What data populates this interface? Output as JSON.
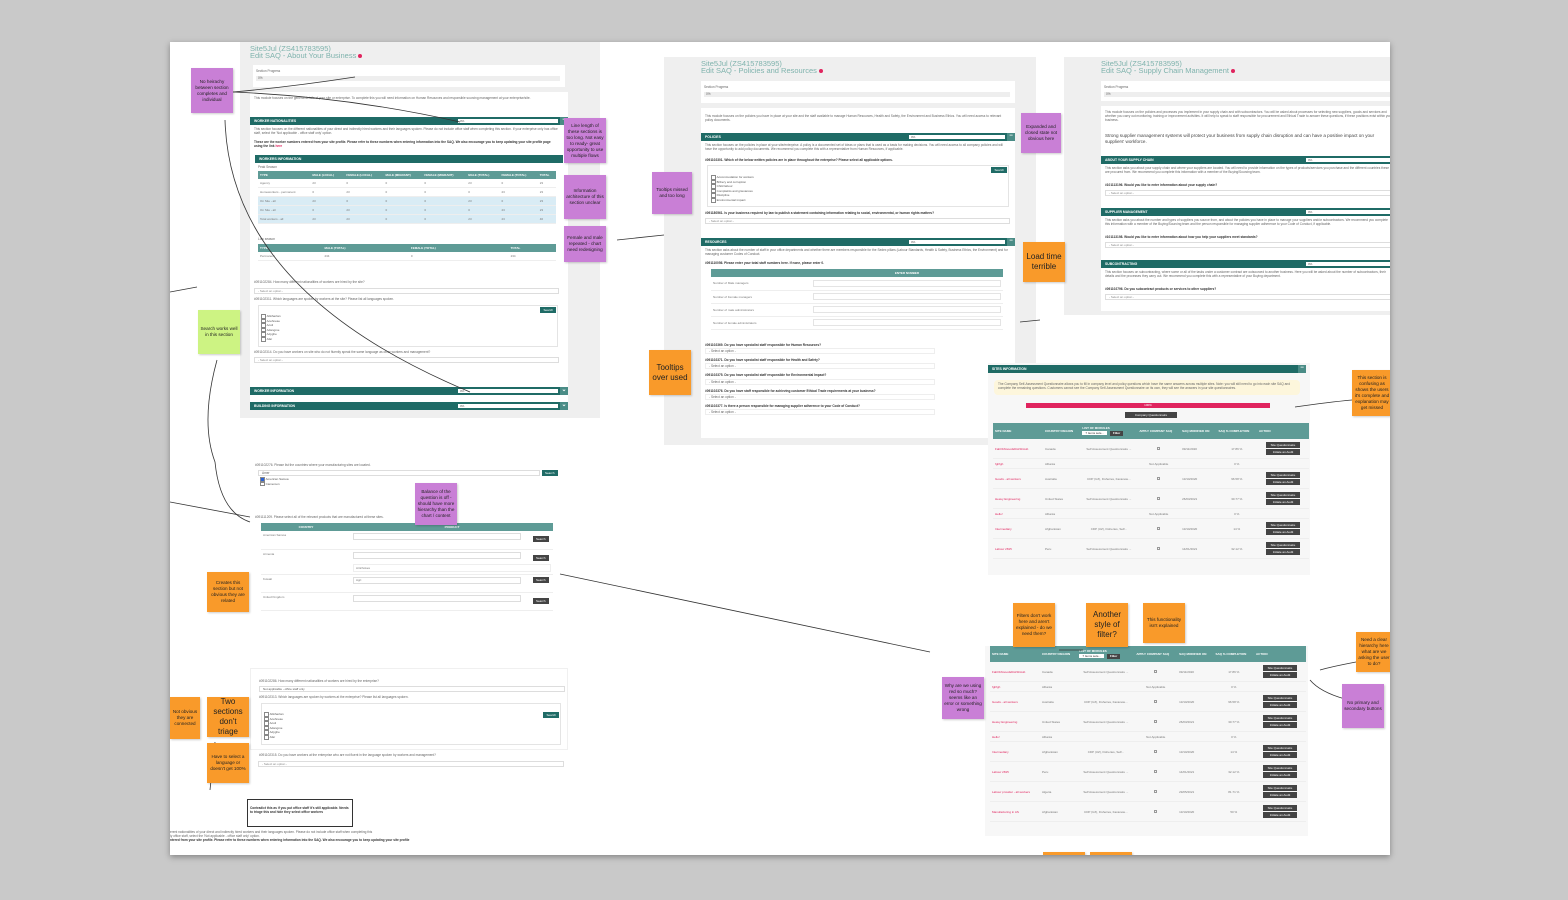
{
  "colors": {
    "teal": "#1f6b66",
    "teal_light": "#5e9b96",
    "red": "#e0245e",
    "sticky_purple": "#c97fd6",
    "sticky_orange": "#f99a2a",
    "sticky_green": "#cdf383"
  },
  "about": {
    "site": "Site5Jul (ZS415783595)",
    "title": "Edit SAQ - About Your Business",
    "progress_label": "Section Progress",
    "progress_value": "0%",
    "intro": "This module focuses on the general details of your site or enterprise. To complete this you will need information on Human Resources and responsible sourcing management at your enterprise/site.",
    "sections": [
      {
        "label": "WORKER NATIONALITIES",
        "pct": "0%"
      },
      {
        "label": "WORKER INFORMATION",
        "pct": "0%"
      },
      {
        "label": "BUILDING INFORMATION",
        "pct": "0%"
      }
    ],
    "nat_text": "This section focuses on the different nationalities of your direct and indirectly hired workers and their languages spoken. Please do not include office staff when completing this section. If your enterprise only has office staff, select the 'Not applicable - office staff only' option.",
    "nat_text2": "These are the worker numbers entered from your site profile. Please refer to these numbers when entering information into the SAQ. We also encourage you to keep updating your site profile page using the link",
    "link": "here",
    "workers_header": "WORKERS INFORMATION",
    "peak_label": "Peak Season",
    "peak_cols": [
      "TYPE",
      "MALE (LOCAL)",
      "FEMALE (LOCAL)",
      "MALE (MIGRANT)",
      "FEMALE (MIGRANT)",
      "MALE (TOTAL)",
      "FEMALE (TOTAL)",
      "TOTAL"
    ],
    "peak_rows": [
      [
        "Agency",
        "23",
        "0",
        "0",
        "0",
        "23",
        "0",
        "23"
      ],
      [
        "Homeworkers - permanent",
        "0",
        "23",
        "0",
        "0",
        "0",
        "23",
        "23"
      ],
      [
        "On Site - all",
        "23",
        "0",
        "0",
        "0",
        "23",
        "0",
        "23"
      ],
      [
        "On Site - all",
        "0",
        "23",
        "0",
        "0",
        "0",
        "23",
        "23"
      ],
      [
        "Total workers - all",
        "23",
        "23",
        "0",
        "0",
        "23",
        "23",
        "46"
      ]
    ],
    "low_label": "Low season",
    "low_cols": [
      "TYPE",
      "MALE (TOTAL)",
      "FEMALE (TOTAL)",
      "TOTAL"
    ],
    "low_rows": [
      [
        "Permanent",
        "234",
        "0",
        "234"
      ]
    ],
    "q1": "#091102284. How many different nationalities of workers are hired by the site?",
    "q2": "#091102311. Which languages are spoken by workers at the site? Please list all languages spoken.",
    "q3": "#091102314. Do you have workers on site who do not fluently speak the same language as other workers and management?",
    "select_placeholder": "- Select an option -",
    "search_label": "Search",
    "languages": [
      "Abkhazian",
      "Acehnese",
      "Acoli",
      "Adangme",
      "Adyghe",
      "Afar"
    ]
  },
  "policies": {
    "site": "Site5Jul (ZS415783595)",
    "title": "Edit SAQ - Policies and Resources",
    "progress_label": "Section Progress",
    "progress_value": "0%",
    "intro": "This module focuses on the policies you have in place at your site and the staff available to manage Human Resources, Health and Safety, the Environment and Business Ethics. You will need access to relevant policy documents.",
    "sections": [
      {
        "label": "POLICIES",
        "pct": "0%"
      },
      {
        "label": "RESOURCES",
        "pct": "0%"
      }
    ],
    "pol_text": "This section focuses on the policies in place at your site/enterprise. A policy is a documented set of ideas or plans that is used as a basis for making decisions. You will need access to all company policies and will have the opportunity to add policy documents. We recommend you complete this with a representative from Human Resources, if applicable.",
    "q_pol": "#091102301. Which of the below written policies are in place throughout the enterprise? Please select all applicable options.",
    "policy_options": [
      "Accommodation for workers",
      "Bribery and corruption",
      "Child labour",
      "Complaints and grievances",
      "Discipline",
      "Environmental impact"
    ],
    "q_law": "#091180561. Is your business required by law to publish a statement containing information relating to social, environmental, or human rights matters?",
    "res_text": "This section asks about the number of staff in your office departments and whether there are members responsible for the Sedex pillars (Labour Standards, Health & Safety, Business Ethics, the Environment) and for managing customer Codes of Conduct.",
    "q_staff": "#091110056. Please enter your total staff numbers here. If none, please enter 0.",
    "enter_number": "ENTER NUMBER",
    "staff_rows": [
      "Number of Male managers",
      "Number of Female managers",
      "Number of male administrators",
      "Number of female administrators"
    ],
    "questions": [
      "#091102369. Do you have specialist staff responsible for Human Resources?",
      "#091102371. Do you have specialist staff responsible for Health and Safety?",
      "#091102375. Do you have specialist staff responsible for Environmental Impact?",
      "#091102376. Do you have staff responsible for achieving customer Ethical Trade requirements at your business?",
      "#091102377. Is there a person responsible for managing supplier adherence to your Code of Conduct?"
    ],
    "select_placeholder": "- Select an option -",
    "search_label": "Search"
  },
  "supply": {
    "site": "Site5Jul (ZS415783595)",
    "title": "Edit SAQ - Supply Chain Management",
    "progress_label": "Section Progress",
    "progress_value": "0%",
    "intro": "This module focuses on the policies and processes you implement in your supply chain and with subcontractors. You will be asked about processes for selecting new suppliers, goods and services and whether you carry out monitoring, training or improvement activities. It will help to speak to staff responsible for procurement and Ethical Trade to answer these questions, if these positions exist within your business.",
    "intro2": "Strong supplier management systems will protect your business from supply chain disruption and can have a positive impact on your suppliers' workforce.",
    "sections": [
      {
        "label": "ABOUT YOUR SUPPLY CHAIN",
        "pct": "0%",
        "text": "This section asks you about your supply chain and where your suppliers are located. You will need to provide information on the types of products/services you purchase and the different countries these are procured from. We recommend you complete this information with a member of the Buying/Sourcing team.",
        "q": "#101113196. Would you like to enter information about your supply chain?"
      },
      {
        "label": "SUPPLIER MANAGEMENT",
        "pct": "0%",
        "text": "This section asks you about the number and types of suppliers you source from, and about the policies you have in place to manage your suppliers and/or subcontractors. We recommend you complete this information with a member of the Buying/Sourcing team and the person responsible for managing supplier adherence to your Code of Conduct, if applicable.",
        "q": "#101113198. Would you like to enter information about how you help your suppliers meet standards?"
      },
      {
        "label": "SUBCONTRACTING",
        "pct": "0%",
        "text": "This section focuses on subcontracting, where some or all of the tasks under a customer contract are outsourced to another business. Here you will be asked about the number of subcontractors, their details and the processes they carry out. We recommend you complete this with a representative of your Buying department.",
        "q": "#091102796. Do you subcontract products or services to other suppliers?"
      }
    ],
    "select_placeholder": "- Select an option -"
  },
  "sites": {
    "header": "SITES INFORMATION",
    "notice": "The Company Self-Assessment Questionnaire allows you to fill in company level and policy questions which have the same answers across multiple sites. Note: you will still need to go into each site SAQ and complete the remaining questions. Customers cannot see the Company Self-Assessment Questionnaire on its own, they will see the answers in your site questionnaires.",
    "progress_value": "100%",
    "company_button": "Company Questionnaire",
    "columns": [
      "SITE NAME",
      "COUNTRY/ REGION",
      "LIST OF MODULES",
      "APPLY COMPANY SAQ",
      "SAQ MODIFIED ON",
      "SAQ % COMPLETION",
      "ACTION"
    ],
    "filter_value": "7 items sele...",
    "filter_button": "Filter",
    "action_primary": "Site Questionnaire",
    "action_secondary": "Initiate an Audit",
    "rows": [
      {
        "name": "FabOfAGoodsDistShAub",
        "country": "Canada",
        "modules": "Self Assessment Questionnaire ...",
        "apply": "checkbox",
        "modified": "09/11/2020",
        "completion": "17.86 %",
        "actions": true
      },
      {
        "name": "fghfgh",
        "country": "Albania",
        "modules": "",
        "apply": "Not Applicable",
        "modified": "",
        "completion": "0 %",
        "actions": false
      },
      {
        "name": "Goods - all workers",
        "country": "Australia",
        "modules": "CDP (UZ), Fisheries, Facanete...",
        "apply": "checkbox",
        "modified": "13/10/2020",
        "completion": "96.58 %",
        "actions": true
      },
      {
        "name": "Heavy Engineering",
        "country": "United States",
        "modules": "Self Assessment Questionnaire ...",
        "apply": "checkbox",
        "modified": "26/03/2021",
        "completion": "30.77 %",
        "actions": true
      },
      {
        "name": "Hello!",
        "country": "Albania",
        "modules": "",
        "apply": "Not Applicable",
        "modified": "",
        "completion": "0 %",
        "actions": false
      },
      {
        "name": "Intermediary",
        "country": "Afghanistan",
        "modules": "CDP (UZ), Fisheries, Self...",
        "apply": "checkbox",
        "modified": "13/10/2020",
        "completion": "14 %",
        "actions": true
      },
      {
        "name": "Labour 2815",
        "country": "Peru",
        "modules": "Self Assessment Questionnaire ...",
        "apply": "checkbox",
        "modified": "14/01/2021",
        "completion": "32.12 %",
        "actions": true
      },
      {
        "name": "Labour provider - all workers",
        "country": "Algeria",
        "modules": "Self Assessment Questionnaire ...",
        "apply": "checkbox",
        "modified": "29/05/2021",
        "completion": "81.71 %",
        "actions": true
      },
      {
        "name": "Manufacturing in AS",
        "country": "Afghanistan",
        "modules": "CDP (UZ), Fisheries, Facanete...",
        "apply": "checkbox",
        "modified": "13/10/2020",
        "completion": "50 %",
        "actions": true
      }
    ]
  },
  "countries": {
    "q": "#091102276. Please list the countries where your manufacturing sites are located.",
    "search_value": "Amer",
    "search_label": "Search",
    "options": [
      {
        "label": "American Samoa",
        "checked": true
      },
      {
        "label": "Cameroon",
        "checked": false
      }
    ],
    "q2": "#091111209. Please select all of the relevant products that are manufactured at these sites.",
    "cols": [
      "COUNTRY",
      "PRODUCT"
    ],
    "rows": [
      {
        "country": "American Samoa",
        "product": ""
      },
      {
        "country": "Armenia",
        "product": "",
        "tag": "Artichokes"
      },
      {
        "country": "Kuwait",
        "product": "Agri"
      },
      {
        "country": "United Kingdom",
        "product": ""
      }
    ]
  },
  "languages2": {
    "q1": "#091102286. How many different nationalities of workers are hired by the enterprise?",
    "q1_value": "Not applicable - office staff only",
    "q2": "#091102313. Which languages are spoken by workers at the enterprise? Please list all languages spoken.",
    "languages": [
      "Abkhazian",
      "Acehnese",
      "Acoli",
      "Adangme",
      "Adyghe",
      "Afar"
    ],
    "q3": "#091102315. Do you have workers at the enterprise who are not fluent in the language spoken by workers and management?",
    "select_placeholder": "- Select an option -",
    "search_label": "Search"
  },
  "callout": "Contradict this as if you put office staff it's still applicable. Needs to triage this and hide they select office workers",
  "bottom_snippet": [
    "erent nationalities of your direct and indirectly hired workers and their languages spoken. Please do not include office staff when completing this",
    "ly office staff, select the 'Not applicable - office staff only' option.",
    "ntered from your site profile. Please refer to these numbers when entering information into the SAQ. We also encourage you to keep updating your site profile"
  ],
  "stickies": [
    {
      "id": "no-hierarchy",
      "color": "purple",
      "text": "No heirachy between section completes and individual"
    },
    {
      "id": "line-length",
      "color": "purple",
      "text": "Line length of these sections is too long. Not easy to ready- great opportunity to use multiple flows"
    },
    {
      "id": "info-architecture",
      "color": "purple",
      "text": "Information architecture of this section unclear"
    },
    {
      "id": "female-male",
      "color": "purple",
      "text": "Female and male repeated - chart need redesigning"
    },
    {
      "id": "search-works",
      "color": "green",
      "text": "Search works well in this section"
    },
    {
      "id": "tooltips-missed",
      "color": "purple",
      "text": "Tooltips missed and too long"
    },
    {
      "id": "expanded-closed",
      "color": "purple",
      "text": "Expanded and closed state not obvious here"
    },
    {
      "id": "load-time",
      "color": "orange",
      "text": "Load time terrible"
    },
    {
      "id": "tooltips-over",
      "color": "orange",
      "text": "Tooltips over used"
    },
    {
      "id": "section-confusing",
      "color": "orange",
      "text": "This section is confusing as shows the users it's complete and explanation may get missed"
    },
    {
      "id": "balance",
      "color": "purple",
      "text": "Balance of the question is off - should have more hierarchy than the chart / content"
    },
    {
      "id": "creates-section",
      "color": "orange",
      "text": "Creates this section but not obvious they are related"
    },
    {
      "id": "not-obvious",
      "color": "orange",
      "text": "Not obvious they are connected"
    },
    {
      "id": "two-sections",
      "color": "orange",
      "text": "Two sections don't triage"
    },
    {
      "id": "select-language",
      "color": "orange",
      "text": "Have to select a language or doesn't get 100%"
    },
    {
      "id": "filters",
      "color": "orange",
      "text": "Filters don't work here and aren't explained - do we need them?"
    },
    {
      "id": "another-filter",
      "color": "orange",
      "text": "Another style of filter?"
    },
    {
      "id": "functionality",
      "color": "orange",
      "text": "This functionality isn't explained"
    },
    {
      "id": "red-use",
      "color": "purple",
      "text": "Why are we using red so much? seems like an error or something wrong"
    },
    {
      "id": "clear-hierarchy",
      "color": "orange",
      "text": "Need a clear hierarchy here what are we asking the user to do?"
    },
    {
      "id": "no-primary",
      "color": "purple",
      "text": "No primary and secondary buttons"
    },
    {
      "id": "blank-1",
      "color": "orange",
      "text": ""
    },
    {
      "id": "blank-2",
      "color": "orange",
      "text": ""
    }
  ]
}
